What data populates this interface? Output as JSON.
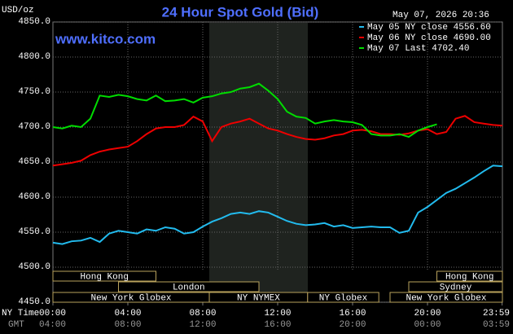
{
  "chart_data": {
    "type": "line",
    "title": "24 Hour Spot Gold (Bid)",
    "site": "www.kitco.com",
    "timestamp": "May 07, 2026 20:36",
    "y_unit": "USD/oz",
    "x_row_label": "NY Time",
    "gmt_row_label": "GMT",
    "gmt_labels": [
      "04:00",
      "08:00",
      "12:00",
      "16:00",
      "20:00",
      "00:00",
      "03:59"
    ],
    "sessions": [
      "Hong Kong",
      "Hong Kong",
      "London",
      "Sydney",
      "New York Globex",
      "NY NYMEX",
      "NY Globex",
      "New York Globex"
    ],
    "x": [
      0,
      0.5,
      1,
      1.5,
      2,
      2.5,
      3,
      3.5,
      4,
      4.5,
      5,
      5.5,
      6,
      6.5,
      7,
      7.5,
      8,
      8.5,
      9,
      9.5,
      10,
      10.5,
      11,
      11.5,
      12,
      12.5,
      13,
      13.5,
      14,
      14.5,
      15,
      15.5,
      16,
      16.5,
      17,
      17.5,
      18,
      18.5,
      19,
      19.5,
      20,
      20.5,
      21,
      21.5,
      22,
      22.5,
      23,
      23.5,
      24
    ],
    "series": [
      {
        "name": "May 05 NY close 4556.60",
        "color": "#22bbee",
        "values": [
          4535,
          4533,
          4537,
          4538,
          4542,
          4536,
          4548,
          4552,
          4550,
          4548,
          4554,
          4552,
          4557,
          4555,
          4548,
          4550,
          4558,
          4565,
          4570,
          4576,
          4578,
          4576,
          4580,
          4578,
          4572,
          4566,
          4562,
          4560,
          4561,
          4563,
          4558,
          4560,
          4556,
          4557,
          4558,
          4557,
          4557,
          4549,
          4552,
          4578,
          4586,
          4596,
          4606,
          4612,
          4620,
          4628,
          4637,
          4645,
          4644
        ]
      },
      {
        "name": "May 06 NY close 4690.00",
        "color": "#ee0000",
        "values": [
          4645,
          4647,
          4649,
          4652,
          4660,
          4665,
          4668,
          4670,
          4672,
          4680,
          4690,
          4698,
          4700,
          4700,
          4703,
          4715,
          4708,
          4680,
          4700,
          4705,
          4708,
          4712,
          4705,
          4698,
          4695,
          4690,
          4686,
          4683,
          4682,
          4684,
          4688,
          4690,
          4695,
          4696,
          4694,
          4690,
          4690,
          4689,
          4691,
          4695,
          4697,
          4690,
          4693,
          4712,
          4716,
          4707,
          4705,
          4703,
          4702
        ]
      },
      {
        "name": "May 07 Last 4702.40",
        "color": "#00dd00",
        "values": [
          4700,
          4698,
          4702,
          4700,
          4712,
          4745,
          4743,
          4746,
          4744,
          4740,
          4738,
          4745,
          4737,
          4738,
          4740,
          4735,
          4742,
          4744,
          4748,
          4750,
          4755,
          4757,
          4762,
          4752,
          4740,
          4722,
          4715,
          4713,
          4705,
          4708,
          4710,
          4708,
          4707,
          4703,
          4690,
          4688,
          4688,
          4690,
          4686,
          4695,
          4700,
          4704,
          null,
          null,
          null,
          null,
          null,
          null,
          null
        ]
      }
    ],
    "xlim": [
      0,
      24
    ],
    "ylim": [
      4450,
      4850
    ],
    "xticks": [
      {
        "value": 0,
        "label": "00:00"
      },
      {
        "value": 4,
        "label": "04:00"
      },
      {
        "value": 8,
        "label": "08:00"
      },
      {
        "value": 12,
        "label": "12:00"
      },
      {
        "value": 16,
        "label": "16:00"
      },
      {
        "value": 20,
        "label": "20:00"
      },
      {
        "value": 23.983,
        "label": "23:59"
      }
    ],
    "yticks": [
      {
        "value": 4450,
        "label": "4450.0"
      },
      {
        "value": 4500,
        "label": "4500.0"
      },
      {
        "value": 4550,
        "label": "4550.0"
      },
      {
        "value": 4600,
        "label": "4600.0"
      },
      {
        "value": 4650,
        "label": "4650.0"
      },
      {
        "value": 4700,
        "label": "4700.0"
      },
      {
        "value": 4750,
        "label": "4750.0"
      },
      {
        "value": 4800,
        "label": "4800.0"
      },
      {
        "value": 4850,
        "label": "4850.0"
      }
    ],
    "grid": true
  }
}
